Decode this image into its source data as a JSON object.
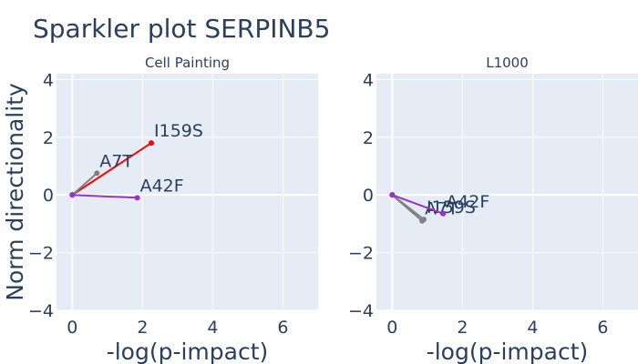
{
  "title": "Sparkler plot SERPINB5",
  "ylabel": "Norm directionality",
  "chart_data": [
    {
      "type": "line",
      "subtitle": "Cell Painting",
      "xlabel": "-log(p-impact)",
      "xlim": [
        -0.45,
        7
      ],
      "ylim": [
        -4,
        4.2
      ],
      "xticks": [
        0,
        2,
        4,
        6
      ],
      "yticks": [
        -4,
        -2,
        0,
        2,
        4
      ],
      "background": "#e5ecf6",
      "series": [
        {
          "label": "I159S",
          "color": "#ff0000",
          "x": [
            0,
            2.25
          ],
          "y": [
            0,
            1.8
          ]
        },
        {
          "label": "A7T",
          "color": "#808080",
          "x": [
            0,
            0.7
          ],
          "y": [
            0,
            0.75
          ]
        },
        {
          "label": "A42F",
          "color": "#9932cc",
          "x": [
            0,
            1.85
          ],
          "y": [
            0,
            -0.1
          ]
        }
      ]
    },
    {
      "type": "line",
      "subtitle": "L1000",
      "xlabel": "-log(p-impact)",
      "xlim": [
        -0.45,
        7
      ],
      "ylim": [
        -4,
        4.2
      ],
      "xticks": [
        0,
        2,
        4,
        6
      ],
      "yticks": [
        -4,
        -2,
        0,
        2,
        4
      ],
      "background": "#e5ecf6",
      "series": [
        {
          "label": "I159S",
          "color": "#808080",
          "x": [
            0,
            0.9
          ],
          "y": [
            0,
            -0.85
          ]
        },
        {
          "label": "A7T",
          "color": "#808080",
          "x": [
            0,
            0.85
          ],
          "y": [
            0,
            -0.9
          ]
        },
        {
          "label": "A42F",
          "color": "#9932cc",
          "x": [
            0,
            1.45
          ],
          "y": [
            0,
            -0.65
          ]
        }
      ]
    }
  ]
}
